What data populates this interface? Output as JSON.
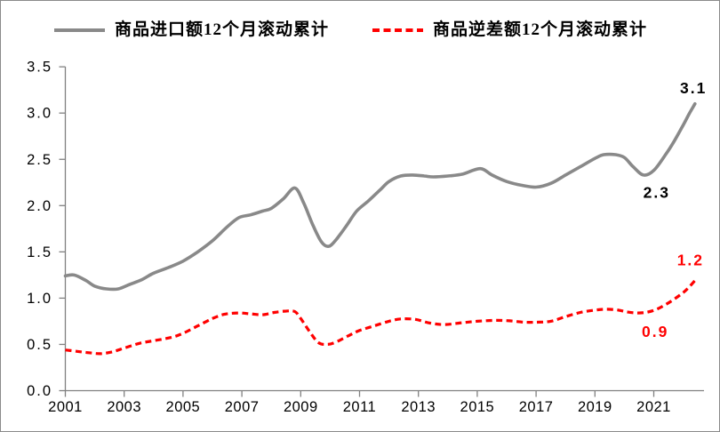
{
  "chart_data": {
    "type": "line",
    "title": "",
    "legend_position": "top",
    "grid": false,
    "x_axis": {
      "ticks": [
        2001,
        2003,
        2005,
        2007,
        2009,
        2011,
        2013,
        2015,
        2017,
        2019,
        2021
      ],
      "tick_labels": [
        "2001",
        "2003",
        "2005",
        "2007",
        "2009",
        "2011",
        "2013",
        "2015",
        "2017",
        "2019",
        "2021"
      ],
      "range": [
        2001,
        2022.7
      ]
    },
    "y_axis": {
      "ticks": [
        0,
        0.5,
        1,
        1.5,
        2,
        2.5,
        3,
        3.5
      ],
      "tick_labels": [
        "0.0",
        "0.5",
        "1.0",
        "1.5",
        "2.0",
        "2.5",
        "3.0",
        "3.5"
      ],
      "range": [
        0,
        3.5
      ]
    },
    "series": [
      {
        "name": "商品进口额12个月滚动累计",
        "color": "#898989",
        "line_style": "solid",
        "points": [
          [
            2001.0,
            1.24
          ],
          [
            2001.3,
            1.25
          ],
          [
            2001.7,
            1.19
          ],
          [
            2002.0,
            1.13
          ],
          [
            2002.4,
            1.1
          ],
          [
            2002.8,
            1.1
          ],
          [
            2003.2,
            1.15
          ],
          [
            2003.6,
            1.2
          ],
          [
            2004.0,
            1.27
          ],
          [
            2004.5,
            1.33
          ],
          [
            2005.0,
            1.4
          ],
          [
            2005.5,
            1.5
          ],
          [
            2006.0,
            1.62
          ],
          [
            2006.5,
            1.77
          ],
          [
            2006.9,
            1.87
          ],
          [
            2007.3,
            1.9
          ],
          [
            2007.7,
            1.94
          ],
          [
            2008.0,
            1.97
          ],
          [
            2008.4,
            2.07
          ],
          [
            2008.8,
            2.19
          ],
          [
            2009.1,
            2.03
          ],
          [
            2009.4,
            1.8
          ],
          [
            2009.7,
            1.61
          ],
          [
            2009.95,
            1.56
          ],
          [
            2010.2,
            1.63
          ],
          [
            2010.55,
            1.78
          ],
          [
            2010.9,
            1.94
          ],
          [
            2011.3,
            2.05
          ],
          [
            2011.7,
            2.17
          ],
          [
            2012.0,
            2.26
          ],
          [
            2012.4,
            2.32
          ],
          [
            2012.8,
            2.33
          ],
          [
            2013.2,
            2.32
          ],
          [
            2013.5,
            2.31
          ],
          [
            2014.0,
            2.32
          ],
          [
            2014.5,
            2.34
          ],
          [
            2015.1,
            2.4
          ],
          [
            2015.5,
            2.33
          ],
          [
            2016.0,
            2.26
          ],
          [
            2016.5,
            2.22
          ],
          [
            2017.0,
            2.2
          ],
          [
            2017.5,
            2.24
          ],
          [
            2018.0,
            2.33
          ],
          [
            2018.5,
            2.42
          ],
          [
            2019.0,
            2.51
          ],
          [
            2019.3,
            2.55
          ],
          [
            2019.7,
            2.55
          ],
          [
            2020.0,
            2.52
          ],
          [
            2020.3,
            2.42
          ],
          [
            2020.65,
            2.33
          ],
          [
            2021.0,
            2.38
          ],
          [
            2021.4,
            2.55
          ],
          [
            2021.7,
            2.7
          ],
          [
            2022.0,
            2.87
          ],
          [
            2022.2,
            2.99
          ],
          [
            2022.4,
            3.1
          ]
        ]
      },
      {
        "name": "商品逆差额12个月滚动累计",
        "color": "#ff0000",
        "line_style": "dashed",
        "points": [
          [
            2001.0,
            0.44
          ],
          [
            2001.4,
            0.425
          ],
          [
            2001.8,
            0.41
          ],
          [
            2002.2,
            0.4
          ],
          [
            2002.6,
            0.42
          ],
          [
            2003.0,
            0.46
          ],
          [
            2003.5,
            0.51
          ],
          [
            2004.0,
            0.54
          ],
          [
            2004.6,
            0.575
          ],
          [
            2005.0,
            0.62
          ],
          [
            2005.5,
            0.7
          ],
          [
            2006.0,
            0.78
          ],
          [
            2006.4,
            0.825
          ],
          [
            2006.9,
            0.84
          ],
          [
            2007.3,
            0.83
          ],
          [
            2007.7,
            0.82
          ],
          [
            2008.1,
            0.845
          ],
          [
            2008.5,
            0.86
          ],
          [
            2008.8,
            0.855
          ],
          [
            2009.0,
            0.78
          ],
          [
            2009.3,
            0.64
          ],
          [
            2009.6,
            0.52
          ],
          [
            2009.9,
            0.5
          ],
          [
            2010.2,
            0.525
          ],
          [
            2010.6,
            0.59
          ],
          [
            2011.0,
            0.65
          ],
          [
            2011.5,
            0.7
          ],
          [
            2012.0,
            0.75
          ],
          [
            2012.4,
            0.775
          ],
          [
            2012.9,
            0.77
          ],
          [
            2013.4,
            0.73
          ],
          [
            2013.9,
            0.715
          ],
          [
            2014.5,
            0.735
          ],
          [
            2015.0,
            0.75
          ],
          [
            2015.6,
            0.76
          ],
          [
            2016.1,
            0.755
          ],
          [
            2016.6,
            0.74
          ],
          [
            2017.0,
            0.74
          ],
          [
            2017.5,
            0.75
          ],
          [
            2018.0,
            0.8
          ],
          [
            2018.5,
            0.845
          ],
          [
            2019.0,
            0.87
          ],
          [
            2019.4,
            0.88
          ],
          [
            2019.8,
            0.87
          ],
          [
            2020.1,
            0.85
          ],
          [
            2020.45,
            0.84
          ],
          [
            2020.8,
            0.85
          ],
          [
            2021.1,
            0.88
          ],
          [
            2021.4,
            0.93
          ],
          [
            2021.7,
            0.99
          ],
          [
            2022.0,
            1.06
          ],
          [
            2022.2,
            1.12
          ],
          [
            2022.4,
            1.19
          ]
        ]
      }
    ],
    "annotations": [
      {
        "text": "3.1",
        "x": 2022.35,
        "y": 3.27,
        "color": "#000000"
      },
      {
        "text": "2.3",
        "x": 2021.1,
        "y": 2.14,
        "color": "#000000"
      },
      {
        "text": "1.2",
        "x": 2022.25,
        "y": 1.41,
        "color": "#ff0000"
      },
      {
        "text": "0.9",
        "x": 2021.05,
        "y": 0.64,
        "color": "#ff0000"
      }
    ],
    "axis_color": "#808080"
  }
}
